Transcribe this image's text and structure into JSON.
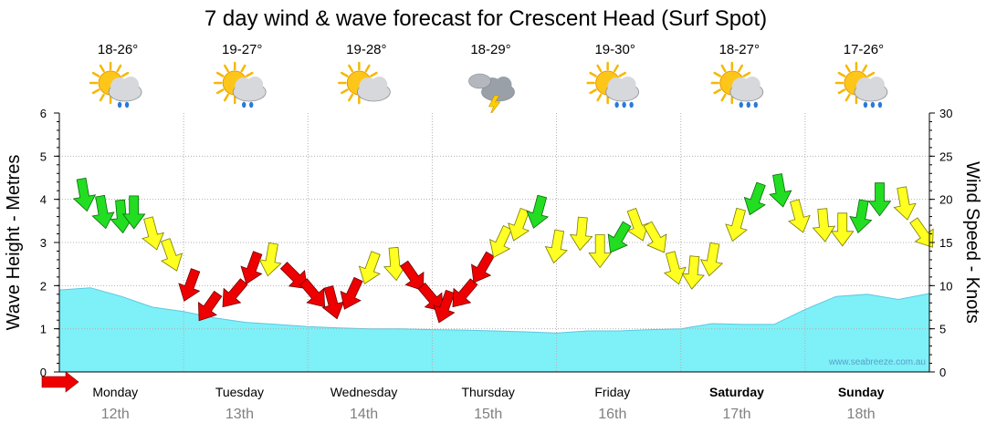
{
  "chart_data": {
    "type": "area",
    "title": "7 day wind & wave forecast for Crescent Head (Surf Spot)",
    "ylabel_left": "Wave Height - Metres",
    "ylabel_right": "Wind Speed - Knots",
    "left_axis": {
      "range": [
        0,
        6
      ],
      "ticks": [
        "0",
        "1",
        "2",
        "3",
        "4",
        "5",
        "6"
      ]
    },
    "right_axis": {
      "range": [
        0,
        30
      ],
      "ticks": [
        "0",
        "5",
        "10",
        "15",
        "20",
        "25",
        "30"
      ]
    },
    "days": [
      {
        "name": "Monday",
        "date": "12th",
        "temp": "18-26°",
        "weather": "sun-cloud-showers-icon",
        "weekend": false
      },
      {
        "name": "Tuesday",
        "date": "13th",
        "temp": "19-27°",
        "weather": "sun-cloud-showers-icon",
        "weekend": false
      },
      {
        "name": "Wednesday",
        "date": "14th",
        "temp": "19-28°",
        "weather": "sun-cloud-icon",
        "weekend": false
      },
      {
        "name": "Thursday",
        "date": "15th",
        "temp": "18-29°",
        "weather": "storm-cloud-icon",
        "weekend": false
      },
      {
        "name": "Friday",
        "date": "16th",
        "temp": "19-30°",
        "weather": "sun-cloud-rain-icon",
        "weekend": false
      },
      {
        "name": "Saturday",
        "date": "17th",
        "temp": "18-27°",
        "weather": "sun-cloud-rain-icon",
        "weekend": true
      },
      {
        "name": "Sunday",
        "date": "18th",
        "temp": "17-26°",
        "weather": "sun-cloud-rain-icon",
        "weekend": true
      }
    ],
    "wave_height_series": {
      "name": "Wave Height (m)",
      "x_days": [
        0,
        0.25,
        0.5,
        0.75,
        1,
        1.25,
        1.5,
        1.75,
        2,
        2.25,
        2.5,
        2.75,
        3,
        3.25,
        3.5,
        3.75,
        4,
        4.25,
        4.5,
        4.75,
        5,
        5.25,
        5.5,
        5.75,
        6,
        6.25,
        6.5,
        6.75,
        7
      ],
      "values": [
        1.9,
        1.95,
        1.75,
        1.5,
        1.4,
        1.25,
        1.15,
        1.1,
        1.05,
        1.02,
        1.0,
        1.0,
        0.98,
        0.97,
        0.95,
        0.93,
        0.9,
        0.95,
        0.95,
        0.98,
        1.0,
        1.12,
        1.1,
        1.1,
        1.45,
        1.75,
        1.8,
        1.68,
        1.82
      ]
    },
    "wind_series": {
      "name": "Wind Speed (knots)",
      "x_days": [
        0.2,
        0.35,
        0.5,
        0.6,
        0.75,
        0.9,
        1.05,
        1.2,
        1.4,
        1.55,
        1.7,
        1.9,
        2.05,
        2.2,
        2.35,
        2.5,
        2.7,
        2.85,
        3.0,
        3.1,
        3.25,
        3.4,
        3.55,
        3.7,
        3.85,
        4.0,
        4.2,
        4.35,
        4.5,
        4.65,
        4.8,
        4.95,
        5.1,
        5.25,
        5.45,
        5.6,
        5.8,
        5.95,
        6.15,
        6.3,
        6.45,
        6.6,
        6.8,
        6.95
      ],
      "values": [
        20.5,
        18.5,
        18,
        18.5,
        16,
        13.5,
        10,
        7.5,
        9,
        12,
        13,
        11,
        9,
        8,
        9,
        12,
        12.5,
        11,
        8.5,
        7.5,
        9,
        12,
        15,
        17,
        18.5,
        14.5,
        16,
        14,
        15.5,
        17,
        15.5,
        12,
        11.5,
        13,
        17,
        20,
        21,
        18,
        17,
        16.5,
        18,
        20,
        19.5,
        16
      ],
      "colors": [
        "green",
        "green",
        "green",
        "green",
        "yellow",
        "yellow",
        "red",
        "red",
        "red",
        "red",
        "yellow",
        "red",
        "red",
        "red",
        "red",
        "yellow",
        "yellow",
        "red",
        "red",
        "red",
        "red",
        "red",
        "yellow",
        "yellow",
        "green",
        "yellow",
        "yellow",
        "yellow",
        "green",
        "yellow",
        "yellow",
        "yellow",
        "yellow",
        "yellow",
        "yellow",
        "green",
        "green",
        "yellow",
        "yellow",
        "yellow",
        "green",
        "green",
        "yellow",
        "yellow"
      ],
      "directions_deg": [
        170,
        170,
        175,
        180,
        165,
        160,
        200,
        215,
        220,
        200,
        190,
        135,
        140,
        165,
        205,
        200,
        175,
        145,
        140,
        200,
        220,
        210,
        205,
        200,
        195,
        190,
        185,
        180,
        210,
        160,
        150,
        165,
        185,
        190,
        195,
        200,
        170,
        165,
        175,
        180,
        190,
        180,
        170,
        145
      ]
    }
  },
  "weather_icons": [
    "sun-cloud-showers-icon",
    "sun-cloud-showers-icon",
    "sun-cloud-icon",
    "storm-cloud-icon",
    "sun-cloud-rain-icon",
    "sun-cloud-rain-icon",
    "sun-cloud-rain-icon"
  ],
  "credit": "www.seabreeze.com.au",
  "colors": {
    "wave_fill": "#7ef0f8",
    "wave_line": "#5cc8e0",
    "green": "#22dd22",
    "yellow": "#ffff22",
    "red": "#ee0000",
    "grid": "#b0b0b0"
  }
}
